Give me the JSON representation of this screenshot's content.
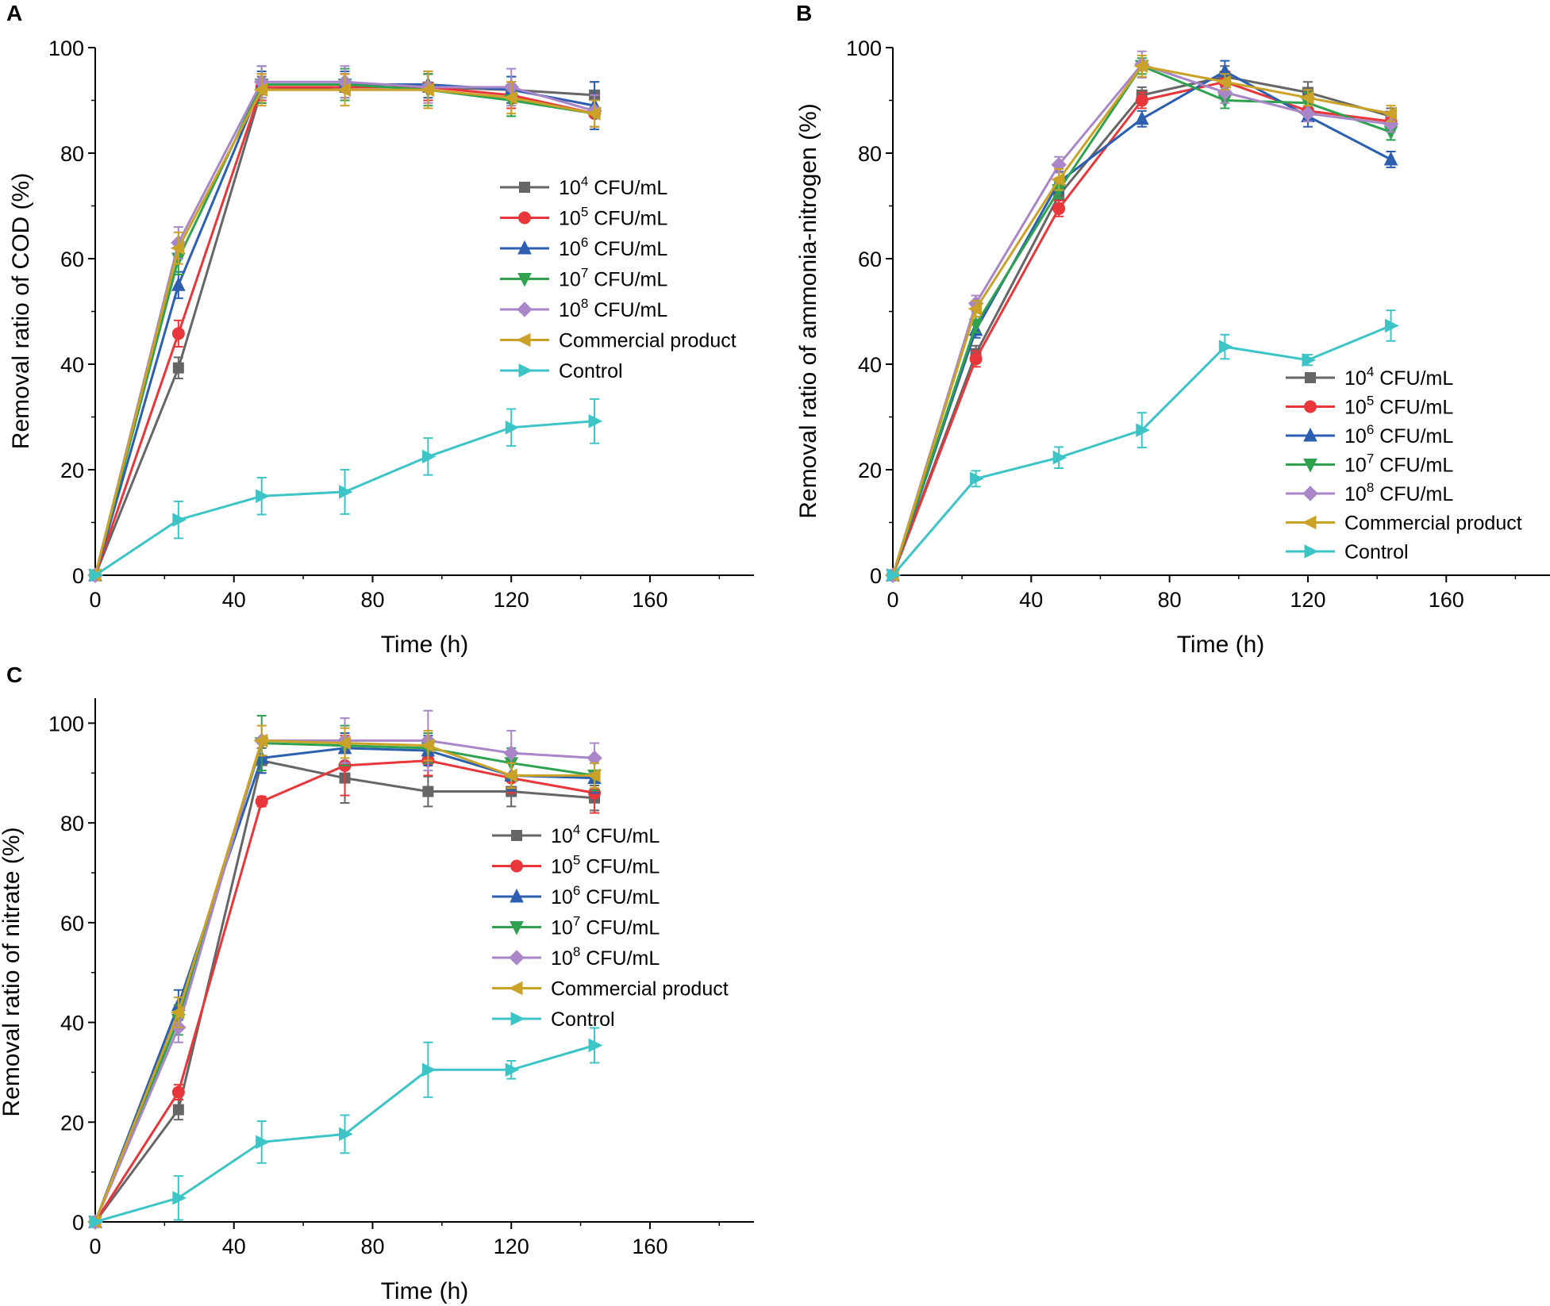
{
  "colors": {
    "s1": "#666666",
    "s2": "#e8363a",
    "s3": "#2c5fb0",
    "s4": "#2ea24e",
    "s5": "#a886c8",
    "s6": "#c9a227",
    "s7": "#3dc4c7"
  },
  "legend_entries": [
    {
      "base": "10",
      "exp": "4",
      "unit": " CFU/mL",
      "marker": "square",
      "color_key": "s1"
    },
    {
      "base": "10",
      "exp": "5",
      "unit": " CFU/mL",
      "marker": "circle",
      "color_key": "s2"
    },
    {
      "base": "10",
      "exp": "6",
      "unit": " CFU/mL",
      "marker": "triangle-up",
      "color_key": "s3"
    },
    {
      "base": "10",
      "exp": "7",
      "unit": " CFU/mL",
      "marker": "triangle-down",
      "color_key": "s4"
    },
    {
      "base": "10",
      "exp": "8",
      "unit": " CFU/mL",
      "marker": "diamond",
      "color_key": "s5"
    },
    {
      "base": "Commercial product",
      "exp": "",
      "unit": "",
      "marker": "triangle-left",
      "color_key": "s6"
    },
    {
      "base": "Control",
      "exp": "",
      "unit": "",
      "marker": "triangle-right",
      "color_key": "s7"
    }
  ],
  "chart_data": [
    {
      "panel": "A",
      "type": "line",
      "xlabel": "Time (h)",
      "ylabel": "Removal ratio of COD (%)",
      "xlim": [
        0,
        190
      ],
      "ylim": [
        0,
        100
      ],
      "xticks": [
        0,
        40,
        80,
        120,
        160
      ],
      "yticks": [
        0,
        20,
        40,
        60,
        80,
        100
      ],
      "legend_location": "right",
      "x": [
        0,
        24,
        48,
        72,
        96,
        120,
        144
      ],
      "series": [
        {
          "name": "10^4 CFU/mL",
          "values": [
            0,
            39.3,
            92,
            92.5,
            92.5,
            92,
            91
          ],
          "errors": [
            0,
            2,
            2.5,
            2.5,
            2.5,
            2.5,
            2.5
          ]
        },
        {
          "name": "10^5 CFU/mL",
          "values": [
            0,
            45.8,
            92.5,
            92.5,
            92.5,
            91,
            87.5
          ],
          "errors": [
            0,
            2.5,
            2.5,
            2.5,
            2.5,
            2.5,
            2.5
          ]
        },
        {
          "name": "10^6 CFU/mL",
          "values": [
            0,
            55,
            93,
            93,
            93,
            92,
            89
          ],
          "errors": [
            0,
            2.5,
            2.5,
            2.5,
            2.5,
            2.5,
            4.5
          ]
        },
        {
          "name": "10^7 CFU/mL",
          "values": [
            0,
            60,
            93,
            93,
            92,
            90,
            87.5
          ],
          "errors": [
            0,
            3,
            3.5,
            3,
            3,
            3,
            2.5
          ]
        },
        {
          "name": "10^8 CFU/mL",
          "values": [
            0,
            63,
            93.5,
            93.5,
            92.5,
            92.5,
            88
          ],
          "errors": [
            0,
            3,
            3,
            3,
            3,
            3.5,
            3
          ]
        },
        {
          "name": "Commercial product",
          "values": [
            0,
            62,
            92,
            92,
            92,
            90.5,
            87.5
          ],
          "errors": [
            0,
            3,
            3,
            3,
            3.5,
            3,
            2.5
          ]
        },
        {
          "name": "Control",
          "values": [
            0,
            10.5,
            15,
            15.8,
            22.5,
            28,
            29.2
          ],
          "errors": [
            0,
            3.5,
            3.5,
            4.2,
            3.5,
            3.5,
            4.2
          ]
        }
      ]
    },
    {
      "panel": "B",
      "type": "line",
      "xlabel": "Time (h)",
      "ylabel": "Removal ratio of ammonia-nitrogen (%)",
      "xlim": [
        0,
        190
      ],
      "ylim": [
        0,
        100
      ],
      "xticks": [
        0,
        40,
        80,
        120,
        160
      ],
      "yticks": [
        0,
        20,
        40,
        60,
        80,
        100
      ],
      "legend_location": "lower-right",
      "x": [
        0,
        24,
        48,
        72,
        96,
        120,
        144
      ],
      "series": [
        {
          "name": "10^4 CFU/mL",
          "values": [
            0,
            42,
            72,
            91,
            94.5,
            91.5,
            87
          ],
          "errors": [
            0,
            1.5,
            1.5,
            1.5,
            2,
            2,
            1.5
          ]
        },
        {
          "name": "10^5 CFU/mL",
          "values": [
            0,
            41,
            69.5,
            90,
            93.5,
            88,
            86
          ],
          "errors": [
            0,
            1.5,
            1.5,
            1.5,
            2,
            2,
            1.5
          ]
        },
        {
          "name": "10^6 CFU/mL",
          "values": [
            0,
            46.5,
            74.5,
            86.5,
            95.5,
            87,
            78.8
          ],
          "errors": [
            0,
            1.5,
            2,
            1.5,
            2,
            2,
            1.5
          ]
        },
        {
          "name": "10^7 CFU/mL",
          "values": [
            0,
            47.5,
            73,
            96.5,
            90,
            89.5,
            84
          ],
          "errors": [
            0,
            1.5,
            1.5,
            1.5,
            1.5,
            2,
            1.5
          ]
        },
        {
          "name": "10^8 CFU/mL",
          "values": [
            0,
            51.5,
            77.8,
            96.8,
            91.5,
            87.5,
            85.5
          ],
          "errors": [
            0,
            1.5,
            1.5,
            2.5,
            2,
            1.5,
            1.5
          ]
        },
        {
          "name": "Commercial product",
          "values": [
            0,
            50.5,
            75,
            96.5,
            93.5,
            90.5,
            87.5
          ],
          "errors": [
            0,
            1.5,
            2,
            2,
            1.5,
            1.5,
            1.5
          ]
        },
        {
          "name": "Control",
          "values": [
            0,
            18.3,
            22.3,
            27.5,
            43.3,
            40.8,
            47.3
          ],
          "errors": [
            0,
            1.5,
            2,
            3.3,
            2.3,
            1,
            2.9
          ]
        }
      ]
    },
    {
      "panel": "C",
      "type": "line",
      "xlabel": "Time (h)",
      "ylabel": "Removal ratio of nitrate (%)",
      "xlim": [
        0,
        190
      ],
      "ylim": [
        0,
        105
      ],
      "xticks": [
        0,
        40,
        80,
        120,
        160
      ],
      "yticks": [
        0,
        20,
        40,
        60,
        80,
        100
      ],
      "legend_location": "right",
      "x": [
        0,
        24,
        48,
        72,
        96,
        120,
        144
      ],
      "series": [
        {
          "name": "10^4 CFU/mL",
          "values": [
            0,
            22.5,
            92.5,
            89,
            86.3,
            86.3,
            85
          ],
          "errors": [
            0,
            2,
            2.5,
            5,
            3,
            3,
            2.5
          ]
        },
        {
          "name": "10^5 CFU/mL",
          "values": [
            0,
            26,
            84.3,
            91.5,
            92.5,
            89,
            86
          ],
          "errors": [
            0,
            1.5,
            1,
            6,
            3,
            3,
            4
          ]
        },
        {
          "name": "10^6 CFU/mL",
          "values": [
            0,
            43.5,
            93,
            95,
            94.5,
            89.5,
            89
          ],
          "errors": [
            0,
            3,
            3,
            3,
            3,
            3,
            3
          ]
        },
        {
          "name": "10^7 CFU/mL",
          "values": [
            0,
            40.5,
            96,
            95.5,
            95,
            92,
            89.5
          ],
          "errors": [
            0,
            3,
            5.5,
            4,
            3,
            3,
            3
          ]
        },
        {
          "name": "10^8 CFU/mL",
          "values": [
            0,
            39,
            96.5,
            96.5,
            96.5,
            94,
            93
          ],
          "errors": [
            0,
            3,
            3,
            4.5,
            6,
            4.5,
            3
          ]
        },
        {
          "name": "Commercial product",
          "values": [
            0,
            42,
            96.5,
            96,
            95.5,
            89.5,
            89.5
          ],
          "errors": [
            0,
            3,
            3,
            3,
            3,
            2.5,
            2.5
          ]
        },
        {
          "name": "Control",
          "values": [
            0,
            4.8,
            16,
            17.6,
            30.5,
            30.5,
            35.4
          ],
          "errors": [
            0,
            4.4,
            4.2,
            3.8,
            5.5,
            1.8,
            3.5
          ]
        }
      ]
    }
  ]
}
